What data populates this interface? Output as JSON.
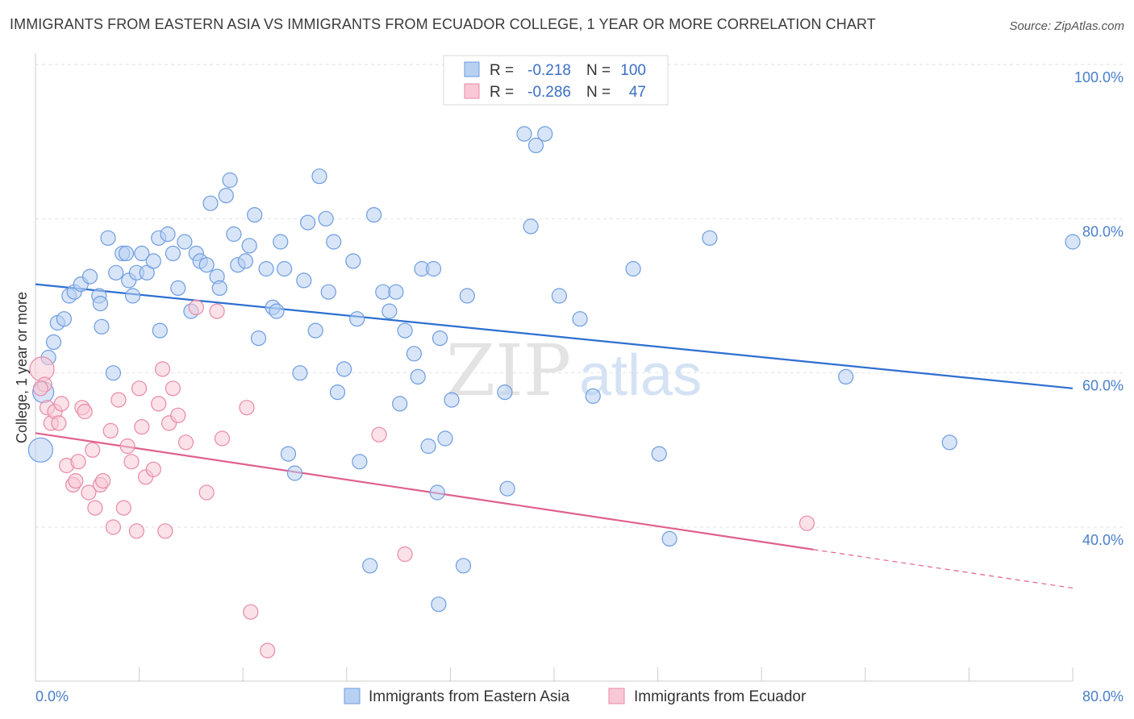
{
  "title": "IMMIGRANTS FROM EASTERN ASIA VS IMMIGRANTS FROM ECUADOR COLLEGE, 1 YEAR OR MORE CORRELATION CHART",
  "source": "Source: ZipAtlas.com",
  "watermark": {
    "zip": "ZIP",
    "atlas": "atlas"
  },
  "chart_data": {
    "type": "scatter",
    "ylabel": "College, 1 year or more",
    "xlim": [
      0,
      80
    ],
    "ylim": [
      20,
      104
    ],
    "x_tick_labels": [
      "0.0%",
      "80.0%"
    ],
    "y_ticks": [
      40,
      60,
      80,
      100
    ],
    "y_tick_labels": [
      "40.0%",
      "60.0%",
      "80.0%",
      "100.0%"
    ],
    "grid": "horizontal dashed",
    "legend_placement": "top-center",
    "legend": [
      {
        "r_label": "R =",
        "r_value": "-0.218",
        "n_label": "N =",
        "n_value": "100"
      },
      {
        "r_label": "R =",
        "r_value": "-0.286",
        "n_label": "N =",
        "n_value": "47"
      }
    ],
    "series": [
      {
        "name": "Immigrants from Eastern Asia",
        "color": "#6d9de0",
        "fill": "#b8d0f2",
        "trend": {
          "x": [
            0,
            80
          ],
          "y": [
            71.5,
            58.0
          ],
          "color": "#2e6fd0"
        },
        "points": [
          [
            0.4,
            50.0
          ],
          [
            0.6,
            57.5
          ],
          [
            1.0,
            62.0
          ],
          [
            1.4,
            64.0
          ],
          [
            1.7,
            66.5
          ],
          [
            2.2,
            67.0
          ],
          [
            2.6,
            70.0
          ],
          [
            3.0,
            70.5
          ],
          [
            3.5,
            71.5
          ],
          [
            4.2,
            72.5
          ],
          [
            4.9,
            70.0
          ],
          [
            5.0,
            69.0
          ],
          [
            5.1,
            66.0
          ],
          [
            5.6,
            77.5
          ],
          [
            6.0,
            60.0
          ],
          [
            6.2,
            73.0
          ],
          [
            6.7,
            75.5
          ],
          [
            7.0,
            75.5
          ],
          [
            7.2,
            72.0
          ],
          [
            7.5,
            70.0
          ],
          [
            7.8,
            73.0
          ],
          [
            8.2,
            75.5
          ],
          [
            8.6,
            73.0
          ],
          [
            9.1,
            74.5
          ],
          [
            9.5,
            77.5
          ],
          [
            9.6,
            65.5
          ],
          [
            10.2,
            78.0
          ],
          [
            10.6,
            75.5
          ],
          [
            11.0,
            71.0
          ],
          [
            11.5,
            77.0
          ],
          [
            12.0,
            68.0
          ],
          [
            12.4,
            75.5
          ],
          [
            12.7,
            74.5
          ],
          [
            13.2,
            74.0
          ],
          [
            13.5,
            82.0
          ],
          [
            14.0,
            72.5
          ],
          [
            14.2,
            71.0
          ],
          [
            14.7,
            83.0
          ],
          [
            15.0,
            85.0
          ],
          [
            15.3,
            78.0
          ],
          [
            15.6,
            74.0
          ],
          [
            16.2,
            74.5
          ],
          [
            16.5,
            76.5
          ],
          [
            16.9,
            80.5
          ],
          [
            17.2,
            64.5
          ],
          [
            17.8,
            73.5
          ],
          [
            18.3,
            68.5
          ],
          [
            18.6,
            68.0
          ],
          [
            18.9,
            77.0
          ],
          [
            19.2,
            73.5
          ],
          [
            19.5,
            49.5
          ],
          [
            20.0,
            47.0
          ],
          [
            20.4,
            60.0
          ],
          [
            20.7,
            72.0
          ],
          [
            21.0,
            79.5
          ],
          [
            21.6,
            65.5
          ],
          [
            21.9,
            85.5
          ],
          [
            22.4,
            80.0
          ],
          [
            22.6,
            70.5
          ],
          [
            23.0,
            77.0
          ],
          [
            23.3,
            57.5
          ],
          [
            23.8,
            60.5
          ],
          [
            24.5,
            74.5
          ],
          [
            24.8,
            67.0
          ],
          [
            25.0,
            48.5
          ],
          [
            25.8,
            35.0
          ],
          [
            26.1,
            80.5
          ],
          [
            26.8,
            70.5
          ],
          [
            27.3,
            68.0
          ],
          [
            27.8,
            70.5
          ],
          [
            28.1,
            56.0
          ],
          [
            28.5,
            65.5
          ],
          [
            29.2,
            62.5
          ],
          [
            29.5,
            59.5
          ],
          [
            29.8,
            73.5
          ],
          [
            30.3,
            50.5
          ],
          [
            30.7,
            73.5
          ],
          [
            31.0,
            44.5
          ],
          [
            31.1,
            30.0
          ],
          [
            31.2,
            64.5
          ],
          [
            31.6,
            51.5
          ],
          [
            32.1,
            56.5
          ],
          [
            33.0,
            35.0
          ],
          [
            33.3,
            70.0
          ],
          [
            36.2,
            57.5
          ],
          [
            36.4,
            45.0
          ],
          [
            37.7,
            91.0
          ],
          [
            38.2,
            79.0
          ],
          [
            38.6,
            89.5
          ],
          [
            39.3,
            91.0
          ],
          [
            40.4,
            70.0
          ],
          [
            42.0,
            67.0
          ],
          [
            43.0,
            57.0
          ],
          [
            46.1,
            73.5
          ],
          [
            48.1,
            49.5
          ],
          [
            48.9,
            38.5
          ],
          [
            52.0,
            77.5
          ],
          [
            62.5,
            59.5
          ],
          [
            70.5,
            51.0
          ],
          [
            80.0,
            77.0
          ]
        ]
      },
      {
        "name": "Immigrants from Ecuador",
        "color": "#e88aa8",
        "fill": "#f8c8d6",
        "trend": {
          "x": [
            0,
            60
          ],
          "y": [
            52.2,
            37.1
          ],
          "color": "#e0608e"
        },
        "trend_dashed": {
          "x": [
            60,
            80
          ],
          "y": [
            37.1,
            32.1
          ]
        },
        "points": [
          [
            0.5,
            60.5
          ],
          [
            0.7,
            58.5
          ],
          [
            0.9,
            55.5
          ],
          [
            1.2,
            53.5
          ],
          [
            1.5,
            55.0
          ],
          [
            1.8,
            53.5
          ],
          [
            2.0,
            56.0
          ],
          [
            2.4,
            48.0
          ],
          [
            2.9,
            45.5
          ],
          [
            3.1,
            46.0
          ],
          [
            3.3,
            48.5
          ],
          [
            3.6,
            55.5
          ],
          [
            3.8,
            55.0
          ],
          [
            4.1,
            44.5
          ],
          [
            4.4,
            50.0
          ],
          [
            4.6,
            42.5
          ],
          [
            5.0,
            45.5
          ],
          [
            5.2,
            46.0
          ],
          [
            5.8,
            52.5
          ],
          [
            6.0,
            40.0
          ],
          [
            6.4,
            56.5
          ],
          [
            6.8,
            42.5
          ],
          [
            7.1,
            50.5
          ],
          [
            7.4,
            48.5
          ],
          [
            7.8,
            39.5
          ],
          [
            8.0,
            58.0
          ],
          [
            8.2,
            53.0
          ],
          [
            8.5,
            46.5
          ],
          [
            9.1,
            47.5
          ],
          [
            9.5,
            56.0
          ],
          [
            9.8,
            60.5
          ],
          [
            10.0,
            39.5
          ],
          [
            10.3,
            53.5
          ],
          [
            10.6,
            58.0
          ],
          [
            11.0,
            54.5
          ],
          [
            11.6,
            51.0
          ],
          [
            12.4,
            68.5
          ],
          [
            13.2,
            44.5
          ],
          [
            14.0,
            68.0
          ],
          [
            14.4,
            51.5
          ],
          [
            16.3,
            55.5
          ],
          [
            16.6,
            29.0
          ],
          [
            17.9,
            24.0
          ],
          [
            26.5,
            52.0
          ],
          [
            28.5,
            36.5
          ],
          [
            59.5,
            40.5
          ],
          [
            0.4,
            58.0
          ]
        ]
      }
    ]
  }
}
